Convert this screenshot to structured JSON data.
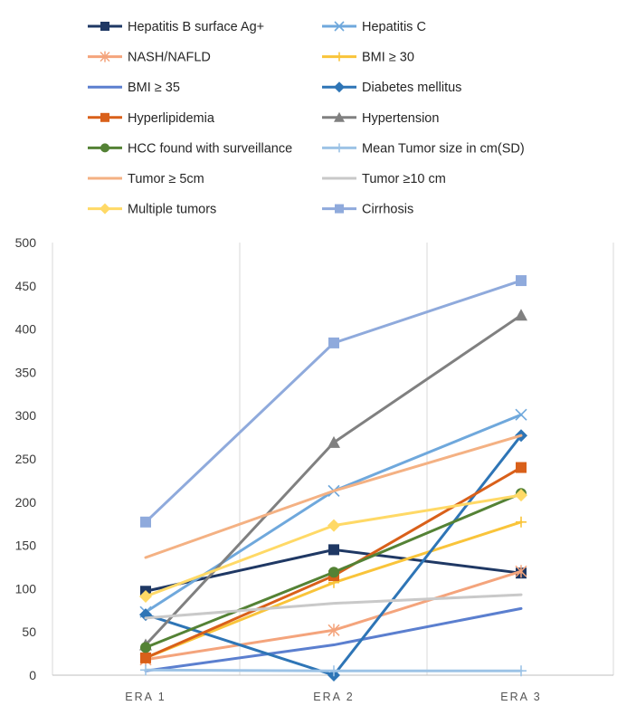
{
  "chart_data": {
    "type": "line",
    "title": "",
    "xlabel": "",
    "ylabel": "",
    "categories": [
      "ERA 1",
      "ERA 2",
      "ERA 3"
    ],
    "ylim": [
      0,
      500
    ],
    "yticks": [
      0,
      50,
      100,
      150,
      200,
      250,
      300,
      350,
      400,
      450,
      500
    ],
    "grid": "vertical",
    "legend_position": "top",
    "series": [
      {
        "name": "Hepatitis B surface Ag+",
        "values": [
          97,
          145,
          118
        ],
        "color": "#1f3864",
        "marker": "square"
      },
      {
        "name": "Hepatitis C",
        "values": [
          73,
          213,
          301
        ],
        "color": "#6fa8dc",
        "marker": "x"
      },
      {
        "name": "NASH/NAFLD",
        "values": [
          18,
          52,
          120
        ],
        "color": "#f4a47c",
        "marker": "asterisk"
      },
      {
        "name": "BMI ≥ 30",
        "values": [
          20,
          107,
          177
        ],
        "color": "#f9c43a",
        "marker": "plus"
      },
      {
        "name": "BMI ≥ 35",
        "values": [
          5,
          35,
          77
        ],
        "color": "#5b7fcf",
        "marker": "none"
      },
      {
        "name": "Diabetes mellitus",
        "values": [
          70,
          0,
          277
        ],
        "color": "#2e75b6",
        "marker": "diamond"
      },
      {
        "name": "Hyperlipidemia",
        "values": [
          20,
          115,
          240
        ],
        "color": "#d9601a",
        "marker": "square"
      },
      {
        "name": "Hypertension",
        "values": [
          35,
          269,
          416
        ],
        "color": "#808080",
        "marker": "triangle"
      },
      {
        "name": "HCC found with surveillance",
        "values": [
          32,
          119,
          210
        ],
        "color": "#548235",
        "marker": "circle"
      },
      {
        "name": "Mean Tumor size in cm(SD)",
        "values": [
          6,
          5,
          5
        ],
        "color": "#9dc3e6",
        "marker": "plus"
      },
      {
        "name": "Tumor ≥ 5cm",
        "values": [
          136,
          213,
          277
        ],
        "color": "#f4b183",
        "marker": "none"
      },
      {
        "name": "Tumor ≥10 cm",
        "values": [
          66,
          83,
          93
        ],
        "color": "#c9c9c9",
        "marker": "none"
      },
      {
        "name": "Multiple tumors",
        "values": [
          91,
          173,
          208
        ],
        "color": "#ffd966",
        "marker": "diamond"
      },
      {
        "name": "Cirrhosis",
        "values": [
          177,
          384,
          456
        ],
        "color": "#8faadc",
        "marker": "square"
      }
    ]
  }
}
